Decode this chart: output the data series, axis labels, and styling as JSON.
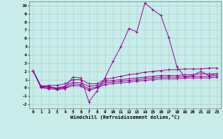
{
  "title": "",
  "xlabel": "Windchill (Refroidissement éolien,°C)",
  "ylabel": "",
  "xlim": [
    -0.5,
    23.5
  ],
  "ylim": [
    -2.5,
    10.5
  ],
  "yticks": [
    -2,
    -1,
    0,
    1,
    2,
    3,
    4,
    5,
    6,
    7,
    8,
    9,
    10
  ],
  "xticks": [
    0,
    1,
    2,
    3,
    4,
    5,
    6,
    7,
    8,
    9,
    10,
    11,
    12,
    13,
    14,
    15,
    16,
    17,
    18,
    19,
    20,
    21,
    22,
    23
  ],
  "background_color": "#c8ece9",
  "grid_color": "#a8d4d0",
  "line_color": "#990099",
  "series": [
    [
      2.1,
      0.1,
      0.2,
      -0.1,
      0.1,
      1.3,
      1.2,
      -1.7,
      -0.4,
      1.2,
      3.2,
      5.0,
      7.2,
      6.8,
      10.3,
      9.5,
      8.8,
      6.1,
      2.6,
      1.3,
      1.5,
      2.0,
      1.5,
      1.7
    ],
    [
      2.1,
      0.2,
      0.3,
      0.3,
      0.5,
      1.0,
      1.0,
      0.5,
      0.5,
      1.0,
      1.2,
      1.4,
      1.6,
      1.7,
      1.9,
      2.0,
      2.1,
      2.2,
      2.2,
      2.3,
      2.3,
      2.3,
      2.4,
      2.4
    ],
    [
      2.1,
      0.2,
      0.1,
      0.0,
      0.2,
      0.7,
      0.6,
      0.2,
      0.3,
      0.8,
      0.9,
      1.0,
      1.1,
      1.2,
      1.3,
      1.4,
      1.5,
      1.5,
      1.5,
      1.6,
      1.6,
      1.7,
      1.7,
      1.7
    ],
    [
      2.1,
      0.1,
      0.0,
      -0.1,
      0.0,
      0.5,
      0.4,
      -0.1,
      0.1,
      0.6,
      0.7,
      0.8,
      0.9,
      1.0,
      1.1,
      1.2,
      1.3,
      1.3,
      1.3,
      1.4,
      1.4,
      1.4,
      1.4,
      1.5
    ],
    [
      2.1,
      0.0,
      -0.1,
      -0.2,
      -0.1,
      0.3,
      0.2,
      -0.3,
      0.0,
      0.4,
      0.5,
      0.6,
      0.7,
      0.8,
      0.9,
      1.0,
      1.1,
      1.1,
      1.1,
      1.2,
      1.2,
      1.2,
      1.2,
      1.3
    ]
  ]
}
